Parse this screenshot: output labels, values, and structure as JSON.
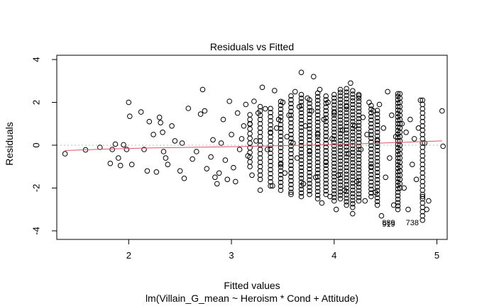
{
  "chart_data": {
    "type": "scatter",
    "title": "Residuals vs Fitted",
    "xlabel": "Fitted values",
    "ylabel": "Residuals",
    "subtitle": "lm(Villain_G_mean ~ Heroism * Cond + Attitude)",
    "xlim": [
      1.3,
      5.1
    ],
    "ylim": [
      -4.4,
      4.2
    ],
    "xticks": [
      2,
      3,
      4,
      5
    ],
    "yticks": [
      -4,
      -2,
      0,
      2,
      4
    ],
    "grid": false,
    "reference_line_y": 0,
    "colors": {
      "points": "#000000",
      "smooth": "#DF536B",
      "reference": "#BEBEBE"
    },
    "smooth": [
      [
        1.38,
        -0.25
      ],
      [
        1.8,
        -0.18
      ],
      [
        2.2,
        -0.13
      ],
      [
        2.6,
        -0.1
      ],
      [
        3.0,
        -0.07
      ],
      [
        3.4,
        -0.03
      ],
      [
        3.8,
        0.01
      ],
      [
        4.1,
        0.05
      ],
      [
        4.4,
        0.09
      ],
      [
        4.7,
        0.14
      ],
      [
        5.05,
        0.2
      ]
    ],
    "point_labels": [
      {
        "text": "889",
        "x": 4.53,
        "y": -3.6
      },
      {
        "text": "738",
        "x": 4.76,
        "y": -3.6
      },
      {
        "text": "919",
        "x": 4.53,
        "y": -3.67
      }
    ],
    "series": [
      {
        "points": [
          [
            1.38,
            -0.4
          ],
          [
            1.58,
            -0.22
          ],
          [
            1.72,
            -0.1
          ],
          [
            1.82,
            -0.85
          ],
          [
            1.84,
            -0.2
          ],
          [
            1.87,
            0.05
          ],
          [
            1.9,
            -0.6
          ],
          [
            1.92,
            -0.95
          ],
          [
            1.95,
            0.02
          ],
          [
            1.98,
            -0.2
          ],
          [
            2.0,
            2.0
          ],
          [
            2.01,
            1.35
          ],
          [
            2.03,
            -0.9
          ],
          [
            2.12,
            1.55
          ],
          [
            2.15,
            -0.2
          ],
          [
            2.18,
            -1.2
          ],
          [
            2.2,
            1.1
          ],
          [
            2.24,
            0.5
          ],
          [
            2.27,
            -1.25
          ],
          [
            2.3,
            1.3
          ],
          [
            2.31,
            1.05
          ],
          [
            2.33,
            0.6
          ],
          [
            2.34,
            -0.3
          ],
          [
            2.36,
            -0.6
          ],
          [
            2.38,
            -0.9
          ],
          [
            2.42,
            0.9
          ],
          [
            2.45,
            0.2
          ],
          [
            2.5,
            -1.2
          ],
          [
            2.52,
            0.1
          ],
          [
            2.54,
            -1.55
          ],
          [
            2.58,
            1.72
          ],
          [
            2.62,
            -0.65
          ],
          [
            2.66,
            -0.3
          ],
          [
            2.7,
            1.45
          ],
          [
            2.72,
            2.6
          ],
          [
            2.74,
            1.6
          ],
          [
            2.76,
            -1.1
          ],
          [
            2.8,
            -0.55
          ],
          [
            2.82,
            0.25
          ],
          [
            2.84,
            -1.5
          ],
          [
            2.86,
            -1.8
          ],
          [
            2.88,
            -1.3
          ],
          [
            2.9,
            0.1
          ],
          [
            2.92,
            1.2
          ],
          [
            2.94,
            -0.7
          ],
          [
            2.96,
            -1.6
          ],
          [
            2.98,
            2.05
          ],
          [
            3.0,
            0.5
          ],
          [
            3.02,
            -1.05
          ],
          [
            3.04,
            -1.7
          ],
          [
            3.06,
            1.5
          ],
          [
            3.08,
            -0.2
          ],
          [
            3.1,
            0.3
          ],
          [
            3.12,
            0.9
          ],
          [
            3.14,
            1.9
          ],
          [
            3.16,
            -0.5
          ],
          [
            3.18,
            1.0
          ],
          [
            3.2,
            -1.4
          ],
          [
            3.22,
            2.05
          ],
          [
            3.24,
            0.2
          ],
          [
            3.26,
            1.5
          ],
          [
            3.28,
            -2.1
          ],
          [
            3.3,
            2.7
          ],
          [
            3.33,
            1.7
          ],
          [
            3.35,
            -0.2
          ],
          [
            3.38,
            0.6
          ],
          [
            3.4,
            -1.9
          ],
          [
            3.42,
            2.55
          ],
          [
            3.44,
            0.8
          ],
          [
            3.46,
            1.2
          ],
          [
            3.48,
            -0.9
          ],
          [
            3.5,
            2.0
          ],
          [
            3.52,
            -1.3
          ],
          [
            3.54,
            0.4
          ],
          [
            3.56,
            1.4
          ],
          [
            3.58,
            -2.3
          ],
          [
            3.6,
            0.1
          ],
          [
            3.62,
            2.5
          ],
          [
            3.64,
            -0.6
          ],
          [
            3.66,
            1.8
          ],
          [
            3.68,
            3.4
          ],
          [
            3.7,
            -1.8
          ],
          [
            3.72,
            0.9
          ],
          [
            3.74,
            2.2
          ],
          [
            3.76,
            -0.3
          ],
          [
            3.78,
            1.6
          ],
          [
            3.8,
            3.2
          ],
          [
            3.82,
            -1.5
          ],
          [
            3.84,
            0.5
          ],
          [
            3.86,
            2.6
          ],
          [
            3.88,
            -2.7
          ],
          [
            3.9,
            1.2
          ],
          [
            3.92,
            -0.8
          ],
          [
            3.94,
            2.0
          ],
          [
            3.96,
            -2.4
          ],
          [
            3.98,
            0.3
          ],
          [
            4.0,
            1.5
          ],
          [
            4.02,
            -3.0
          ],
          [
            4.04,
            -1.4
          ],
          [
            4.06,
            2.6
          ],
          [
            4.08,
            0.7
          ],
          [
            4.1,
            -2.1
          ],
          [
            4.12,
            1.8
          ],
          [
            4.14,
            -0.4
          ],
          [
            4.16,
            2.9
          ],
          [
            4.18,
            -3.2
          ],
          [
            4.2,
            0.9
          ],
          [
            4.22,
            -1.7
          ],
          [
            4.24,
            2.3
          ],
          [
            4.26,
            -0.2
          ],
          [
            4.28,
            1.3
          ],
          [
            4.3,
            -2.6
          ],
          [
            4.32,
            0.5
          ],
          [
            4.34,
            2.0
          ],
          [
            4.36,
            -1.0
          ],
          [
            4.38,
            1.6
          ],
          [
            4.4,
            -2.2
          ],
          [
            4.42,
            0.2
          ],
          [
            4.44,
            1.9
          ],
          [
            4.46,
            -3.3
          ],
          [
            4.48,
            0.8
          ],
          [
            4.5,
            -1.5
          ],
          [
            4.52,
            2.5
          ],
          [
            4.54,
            -0.6
          ],
          [
            4.56,
            1.4
          ],
          [
            4.58,
            -2.8
          ],
          [
            4.6,
            0.4
          ],
          [
            4.62,
            2.4
          ],
          [
            4.64,
            -1.2
          ],
          [
            4.66,
            1.0
          ],
          [
            4.68,
            -2.0
          ],
          [
            4.7,
            0.6
          ],
          [
            4.72,
            -3.0
          ],
          [
            4.74,
            1.2
          ],
          [
            4.76,
            -0.9
          ],
          [
            4.78,
            0.3
          ],
          [
            4.8,
            -1.6
          ],
          [
            4.82,
            0.8
          ],
          [
            4.84,
            2.1
          ],
          [
            4.86,
            -2.4
          ],
          [
            4.88,
            0.1
          ],
          [
            4.9,
            -3.0
          ],
          [
            4.92,
            -2.6
          ],
          [
            5.05,
            1.6
          ],
          [
            5.06,
            -0.05
          ]
        ]
      }
    ],
    "stack_columns": [
      {
        "x": 3.18,
        "ymin": -1.0,
        "ymax": 1.5,
        "step": 0.22
      },
      {
        "x": 3.28,
        "ymin": -1.6,
        "ymax": 1.9,
        "step": 0.2
      },
      {
        "x": 3.38,
        "ymin": -1.9,
        "ymax": 1.8,
        "step": 0.19
      },
      {
        "x": 3.48,
        "ymin": -2.1,
        "ymax": 2.1,
        "step": 0.18
      },
      {
        "x": 3.58,
        "ymin": -2.2,
        "ymax": 2.3,
        "step": 0.18
      },
      {
        "x": 3.68,
        "ymin": -2.4,
        "ymax": 2.4,
        "step": 0.17
      },
      {
        "x": 3.76,
        "ymin": -2.3,
        "ymax": 2.2,
        "step": 0.17
      },
      {
        "x": 3.84,
        "ymin": -2.5,
        "ymax": 2.5,
        "step": 0.17
      },
      {
        "x": 3.92,
        "ymin": -2.3,
        "ymax": 2.4,
        "step": 0.17
      },
      {
        "x": 4.0,
        "ymin": -2.6,
        "ymax": 2.5,
        "step": 0.16
      },
      {
        "x": 4.06,
        "ymin": -2.5,
        "ymax": 2.6,
        "step": 0.16
      },
      {
        "x": 4.12,
        "ymin": -2.8,
        "ymax": 2.7,
        "step": 0.16
      },
      {
        "x": 4.18,
        "ymin": -2.9,
        "ymax": 2.6,
        "step": 0.16
      },
      {
        "x": 4.24,
        "ymin": -2.6,
        "ymax": 2.4,
        "step": 0.16
      },
      {
        "x": 4.36,
        "ymin": -2.4,
        "ymax": 1.9,
        "step": 0.17
      },
      {
        "x": 4.42,
        "ymin": -2.8,
        "ymax": 1.7,
        "step": 0.17
      },
      {
        "x": 4.62,
        "ymin": -3.0,
        "ymax": 2.3,
        "step": 0.16
      },
      {
        "x": 4.64,
        "ymin": -2.0,
        "ymax": 2.4,
        "step": 0.2
      },
      {
        "x": 4.86,
        "ymin": -3.5,
        "ymax": 2.1,
        "step": 0.2
      }
    ]
  }
}
